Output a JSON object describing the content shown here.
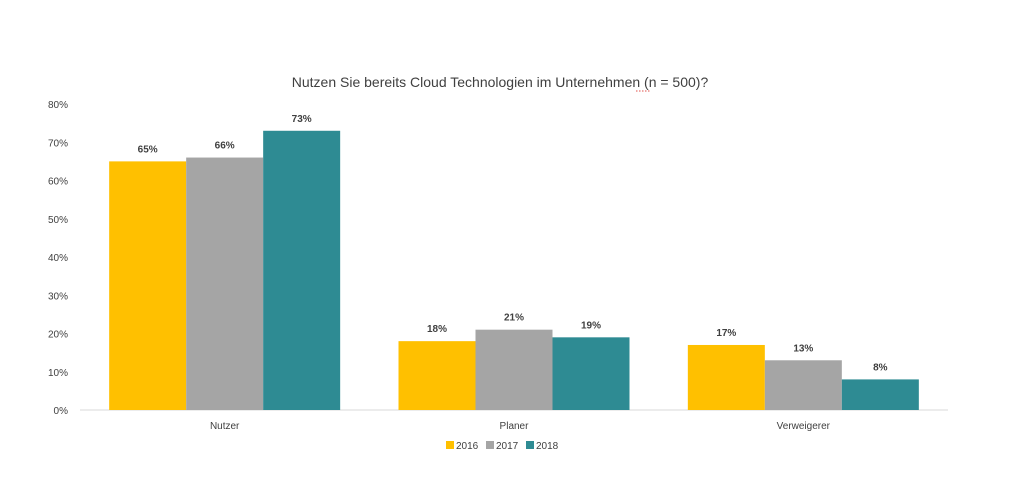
{
  "chart_data": {
    "type": "bar",
    "title": "Nutzen Sie bereits Cloud Technologien im Unternehmen (n = 500)?",
    "categories": [
      "Nutzer",
      "Planer",
      "Verweigerer"
    ],
    "series": [
      {
        "name": "2016",
        "color": "#FFC000",
        "values": [
          65,
          18,
          17
        ]
      },
      {
        "name": "2017",
        "color": "#A5A5A5",
        "values": [
          66,
          21,
          13
        ]
      },
      {
        "name": "2018",
        "color": "#2E8B93",
        "values": [
          73,
          19,
          8
        ]
      }
    ],
    "value_labels": [
      [
        "65%",
        "18%",
        "17%"
      ],
      [
        "66%",
        "21%",
        "13%"
      ],
      [
        "73%",
        "19%",
        "8%"
      ]
    ],
    "ylim": [
      0,
      80
    ],
    "yticks": [
      "0%",
      "10%",
      "20%",
      "30%",
      "40%",
      "50%",
      "60%",
      "70%",
      "80%"
    ],
    "grid": false,
    "legend": "bottom-center"
  }
}
